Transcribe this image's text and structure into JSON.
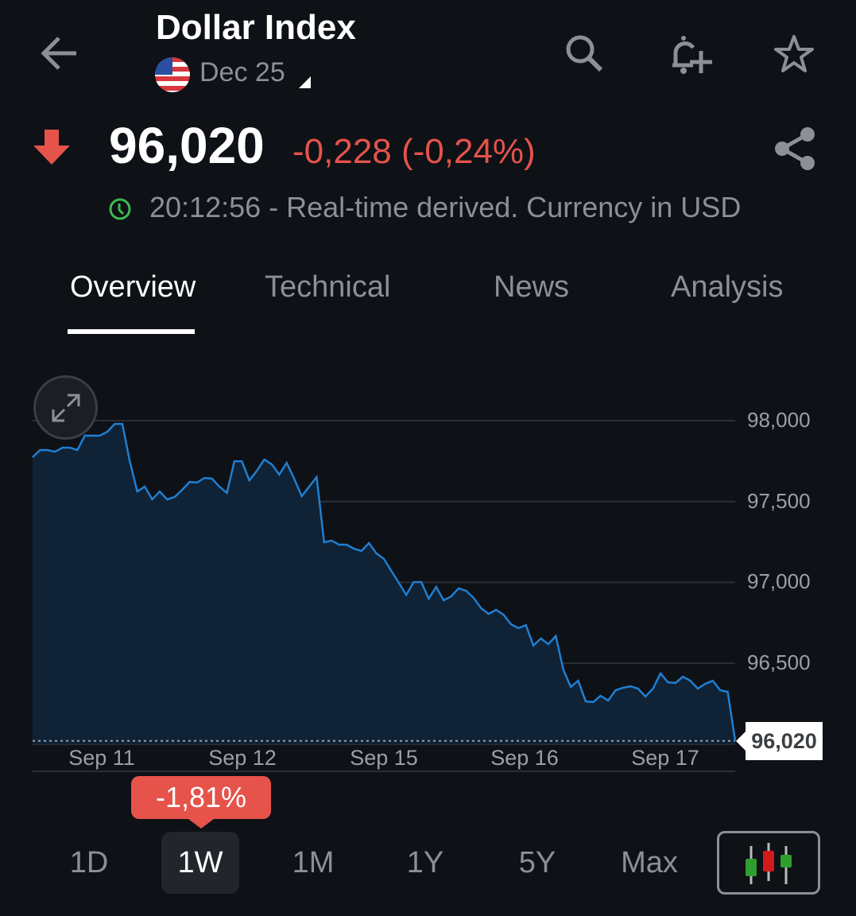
{
  "header": {
    "title": "Dollar Index",
    "contract": "Dec 25",
    "icons": [
      "back-arrow-icon",
      "search-icon",
      "bell-plus-icon",
      "star-icon"
    ]
  },
  "quote": {
    "price": "96,020",
    "change": "-0,228 (-0,24%)",
    "direction": "down",
    "status": "20:12:56 - Real-time derived. Currency in USD",
    "down_color": "#e5534b",
    "clock_color": "#3fb950"
  },
  "tabs": [
    {
      "label": "Overview",
      "active": true
    },
    {
      "label": "Technical"
    },
    {
      "label": "News"
    },
    {
      "label": "Analysis"
    }
  ],
  "chart_data": {
    "type": "area",
    "line_color": "#1f7fd1",
    "ylim": [
      95950,
      98150
    ],
    "yticks": [
      "98,000",
      "97,500",
      "97,000",
      "96,500"
    ],
    "ytick_values": [
      98000,
      97500,
      97000,
      96500
    ],
    "xticks": [
      "Sep 11",
      "Sep 12",
      "Sep 15",
      "Sep 16",
      "Sep 17"
    ],
    "last_value": 96020,
    "last_label": "96,020",
    "values": [
      97774,
      97818,
      97818,
      97808,
      97833,
      97833,
      97818,
      97907,
      97907,
      97907,
      97931,
      97980,
      97980,
      97749,
      97562,
      97592,
      97513,
      97562,
      97513,
      97528,
      97572,
      97621,
      97617,
      97646,
      97641,
      97592,
      97553,
      97749,
      97749,
      97631,
      97690,
      97759,
      97730,
      97666,
      97739,
      97641,
      97533,
      97592,
      97651,
      97248,
      97258,
      97233,
      97233,
      97208,
      97194,
      97243,
      97179,
      97145,
      97071,
      96997,
      96923,
      97002,
      97002,
      96899,
      96972,
      96889,
      96913,
      96963,
      96948,
      96904,
      96840,
      96805,
      96830,
      96800,
      96741,
      96717,
      96736,
      96609,
      96653,
      96618,
      96668,
      96461,
      96353,
      96392,
      96264,
      96260,
      96299,
      96269,
      96333,
      96348,
      96358,
      96343,
      96294,
      96343,
      96437,
      96382,
      96378,
      96417,
      96392,
      96343,
      96373,
      96392,
      96333,
      96323,
      96020
    ]
  },
  "period_change": "-1,81%",
  "ranges": [
    {
      "label": "1D"
    },
    {
      "label": "1W",
      "active": true
    },
    {
      "label": "1M"
    },
    {
      "label": "1Y"
    },
    {
      "label": "5Y"
    },
    {
      "label": "Max"
    }
  ]
}
